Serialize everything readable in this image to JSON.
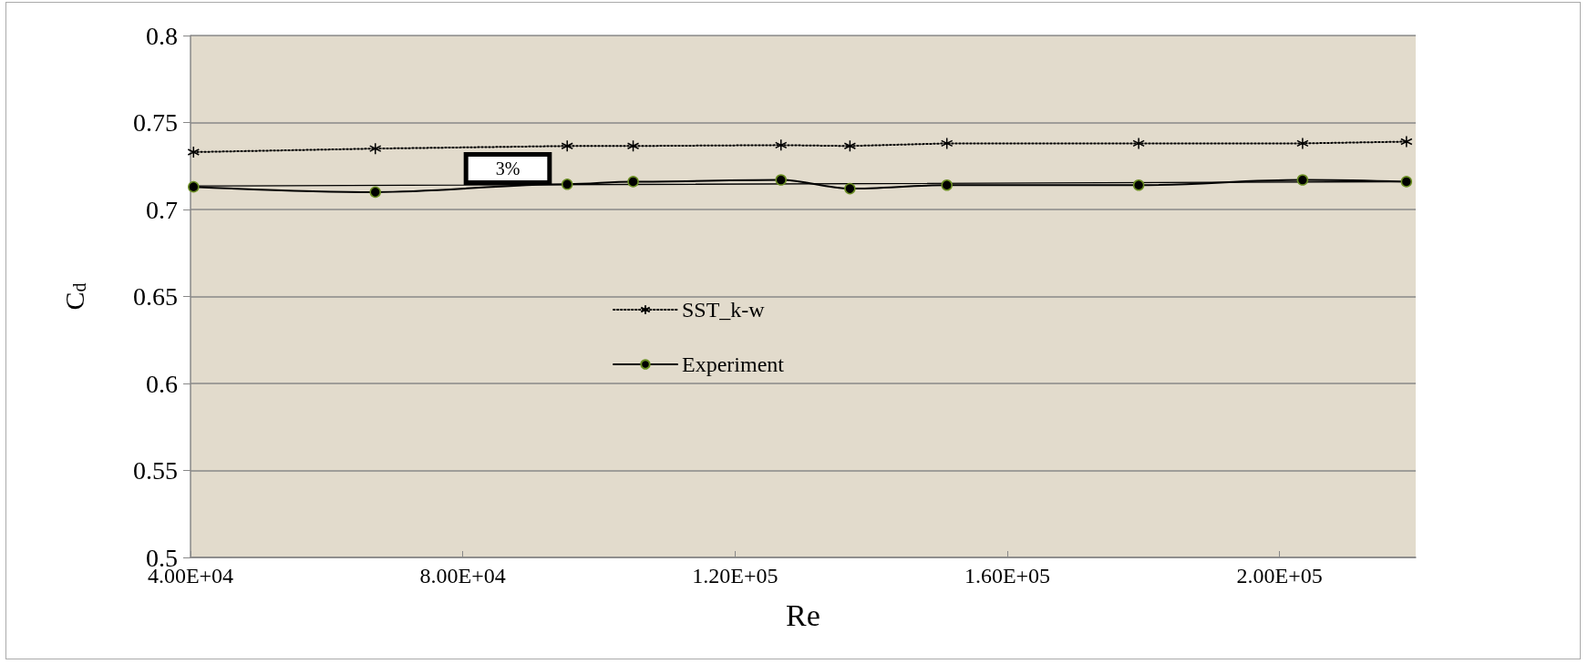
{
  "chart_data": {
    "type": "line",
    "xlabel": "Re",
    "ylabel": "C$_{d}$",
    "x": [
      40440,
      67150,
      95340,
      105030,
      126750,
      136880,
      151120,
      179300,
      203380,
      218640
    ],
    "series": [
      {
        "name": "SST_k-w",
        "color": "#000000",
        "marker": "cross",
        "line_style": "dotted",
        "values": [
          0.733,
          0.735,
          0.7365,
          0.7365,
          0.737,
          0.7365,
          0.738,
          0.738,
          0.738,
          0.739
        ]
      },
      {
        "name": "Experiment",
        "color": "#000000",
        "marker": "circle",
        "line_style": "solid",
        "values": [
          0.713,
          0.71,
          0.7145,
          0.716,
          0.717,
          0.712,
          0.714,
          0.714,
          0.717,
          0.716
        ]
      },
      {
        "type": "line",
        "color": "#000000",
        "marker": "none",
        "line_style": "solid",
        "x": [
          40440,
          218640
        ],
        "values": [
          0.7135,
          0.716
        ]
      }
    ],
    "xlim": [
      40000,
      220000
    ],
    "xticks": [
      {
        "value": 40000,
        "label": "4.00E+04"
      },
      {
        "value": 80000,
        "label": "8.00E+04"
      },
      {
        "value": 120000,
        "label": "1.20E+05"
      },
      {
        "value": 160000,
        "label": "1.60E+05"
      },
      {
        "value": 200000,
        "label": "2.00E+05"
      }
    ],
    "ylim": [
      0.5,
      0.8
    ],
    "yticks": [
      0.5,
      0.55,
      0.6,
      0.65,
      0.7,
      0.75,
      0.8
    ],
    "grid": "y",
    "legend": "center",
    "annotations": [
      "3%"
    ]
  }
}
